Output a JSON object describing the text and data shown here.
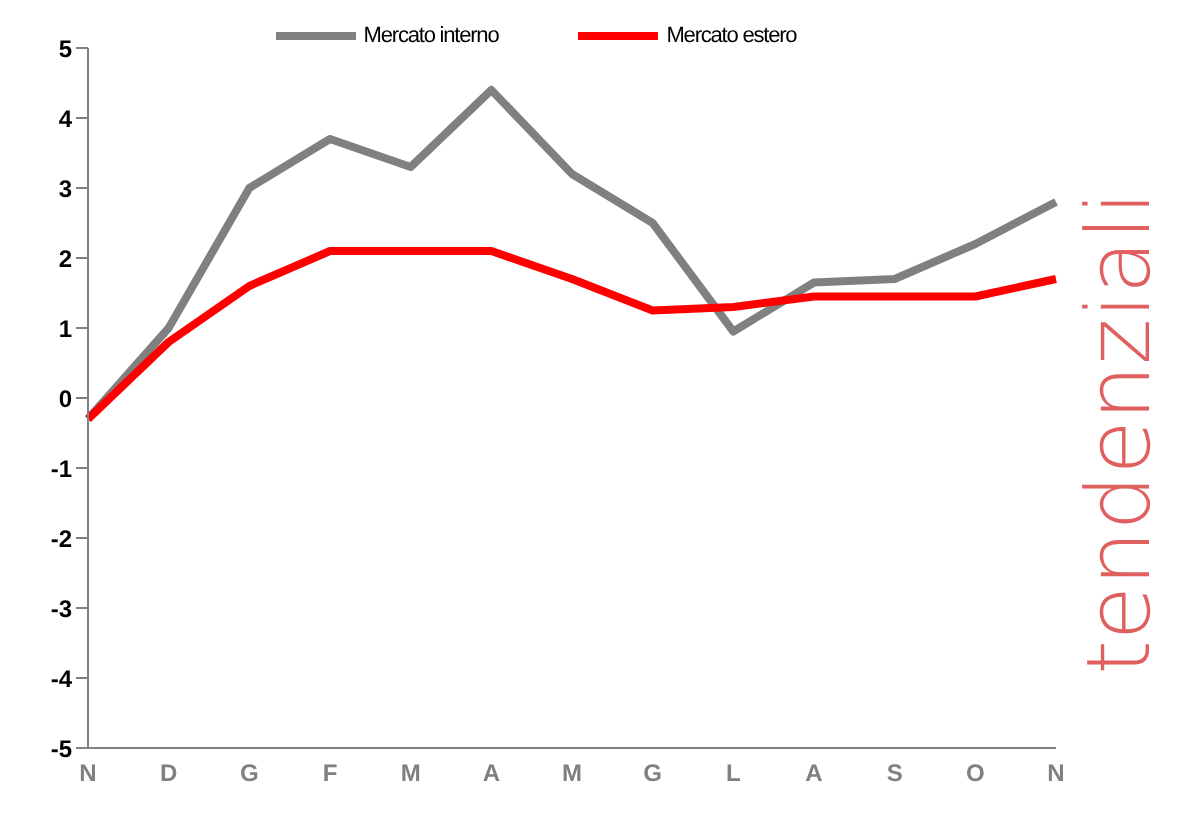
{
  "chart_data": {
    "type": "line",
    "categories": [
      "N",
      "D",
      "G",
      "F",
      "M",
      "A",
      "M",
      "G",
      "L",
      "A",
      "S",
      "O",
      "N"
    ],
    "series": [
      {
        "name": "Mercato interno",
        "color": "#808080",
        "values": [
          -0.3,
          1.0,
          3.0,
          3.7,
          3.3,
          4.4,
          3.2,
          2.5,
          0.95,
          1.65,
          1.7,
          2.2,
          2.8
        ]
      },
      {
        "name": "Mercato estero",
        "color": "#ff0000",
        "values": [
          -0.3,
          0.8,
          1.6,
          2.1,
          2.1,
          2.1,
          1.7,
          1.25,
          1.3,
          1.45,
          1.45,
          1.45,
          1.7
        ]
      }
    ],
    "ylim": [
      -5,
      5
    ],
    "yticks": [
      -5,
      -4,
      -3,
      -2,
      -1,
      0,
      1,
      2,
      3,
      4,
      5
    ],
    "grid": false,
    "legend": "top",
    "marker": "none",
    "line_style": "solid",
    "annotations": [
      "tendenziali"
    ]
  }
}
